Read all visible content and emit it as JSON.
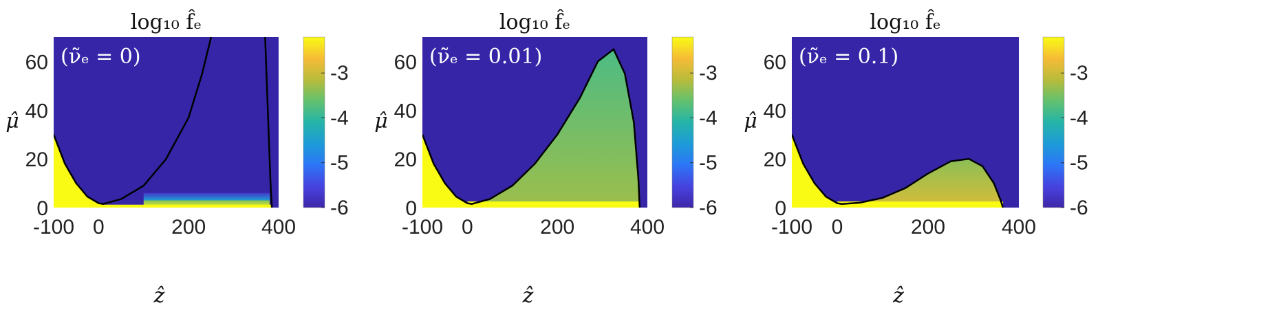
{
  "chart_data": [
    {
      "type": "heatmap",
      "title": "log₁₀ f̂ₑ",
      "annotation": "(ν̃ₑ = 0)",
      "xlabel": "ẑ",
      "ylabel": "μ̂",
      "xlim": [
        -100,
        400
      ],
      "ylim": [
        0,
        70
      ],
      "xticks": [
        "-100",
        "0",
        "200",
        "400"
      ],
      "yticks": [
        "0",
        "20",
        "40",
        "60"
      ],
      "colorbar": {
        "range": [
          -6,
          -2.2
        ],
        "ticks": [
          "-3",
          "-4",
          "-5",
          "-6"
        ]
      },
      "boundary": [
        [
          -100,
          30
        ],
        [
          -75,
          18
        ],
        [
          -50,
          10
        ],
        [
          -25,
          4.5
        ],
        [
          0,
          1.8
        ],
        [
          10,
          1.5
        ],
        [
          50,
          3.5
        ],
        [
          100,
          9
        ],
        [
          150,
          20
        ],
        [
          200,
          37
        ],
        [
          230,
          55
        ],
        [
          250,
          70
        ]
      ],
      "boundary2": [
        [
          370,
          70
        ],
        [
          374,
          50
        ],
        [
          378,
          30
        ],
        [
          382,
          10
        ],
        [
          385,
          0
        ]
      ],
      "fill_levels": [
        {
          "from": [
            0,
            3
          ],
          "level": -2.3
        },
        {
          "from": [
            3,
            6
          ],
          "level": -4.5
        }
      ]
    },
    {
      "type": "heatmap",
      "title": "log₁₀ f̂ₑ",
      "annotation": "(ν̃ₑ = 0.01)",
      "xlabel": "ẑ",
      "ylabel": "μ̂",
      "xlim": [
        -100,
        400
      ],
      "ylim": [
        0,
        70
      ],
      "xticks": [
        "-100",
        "0",
        "200",
        "400"
      ],
      "yticks": [
        "0",
        "20",
        "40",
        "60"
      ],
      "colorbar": {
        "range": [
          -6,
          -2.2
        ],
        "ticks": [
          "-3",
          "-4",
          "-5",
          "-6"
        ]
      },
      "boundary": [
        [
          -100,
          30
        ],
        [
          -75,
          18
        ],
        [
          -50,
          10
        ],
        [
          -25,
          4.5
        ],
        [
          0,
          1.8
        ],
        [
          10,
          1.5
        ],
        [
          50,
          3.5
        ],
        [
          100,
          9
        ],
        [
          150,
          18
        ],
        [
          200,
          30
        ],
        [
          250,
          45
        ],
        [
          290,
          60
        ],
        [
          325,
          65
        ],
        [
          350,
          55
        ],
        [
          370,
          35
        ],
        [
          380,
          12
        ],
        [
          383,
          0
        ]
      ],
      "fill_range": [
        -3.8,
        -3.3
      ]
    },
    {
      "type": "heatmap",
      "title": "log₁₀ f̂ₑ",
      "annotation": "(ν̃ₑ = 0.1)",
      "xlabel": "ẑ",
      "ylabel": "μ̂",
      "xlim": [
        -100,
        400
      ],
      "ylim": [
        0,
        70
      ],
      "xticks": [
        "-100",
        "0",
        "200",
        "400"
      ],
      "yticks": [
        "0",
        "20",
        "40",
        "60"
      ],
      "colorbar": {
        "range": [
          -6,
          -2.2
        ],
        "ticks": [
          "-3",
          "-4",
          "-5",
          "-6"
        ]
      },
      "boundary": [
        [
          -100,
          30
        ],
        [
          -75,
          18
        ],
        [
          -50,
          10
        ],
        [
          -25,
          4.5
        ],
        [
          0,
          1.8
        ],
        [
          10,
          1.5
        ],
        [
          50,
          2
        ],
        [
          100,
          4
        ],
        [
          150,
          8
        ],
        [
          200,
          14
        ],
        [
          250,
          19
        ],
        [
          290,
          20
        ],
        [
          320,
          17
        ],
        [
          345,
          10
        ],
        [
          360,
          3
        ],
        [
          365,
          0
        ]
      ],
      "fill_range": [
        -3.4,
        -2.9
      ]
    }
  ],
  "colors": {
    "background": "#3626a7",
    "colormap": [
      "#3e26a8",
      "#4743e0",
      "#2c76f6",
      "#1d9bd8",
      "#25b4a8",
      "#62c16f",
      "#b8bc3a",
      "#f6bc36",
      "#f9fb15"
    ]
  }
}
